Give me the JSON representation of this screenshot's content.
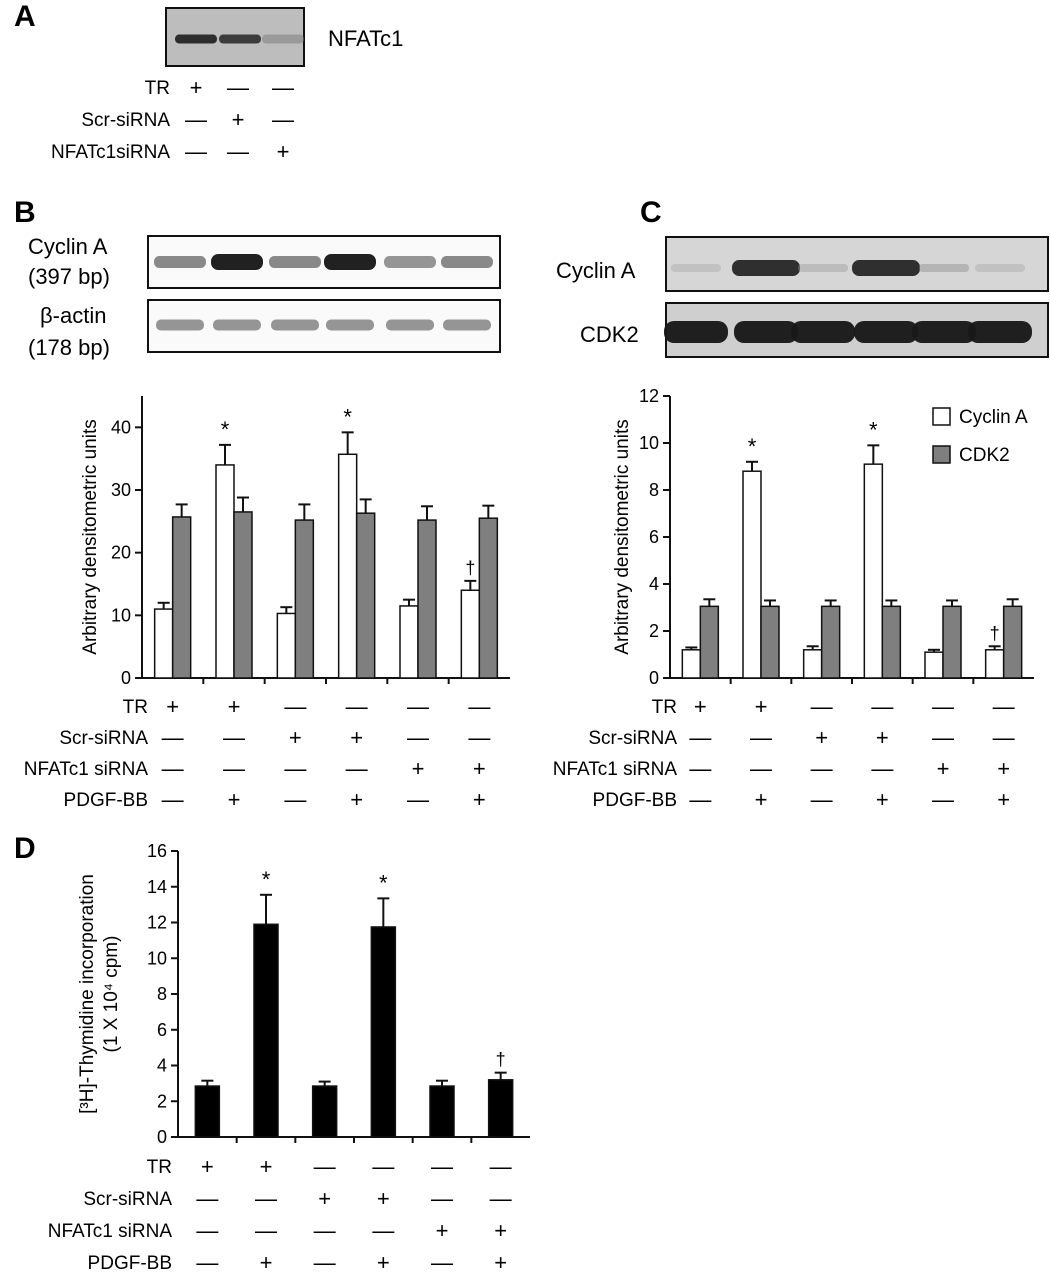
{
  "panel_A": {
    "letter": "A",
    "blot_label": "NFATc1",
    "conditions": [
      {
        "label": "TR",
        "signs": [
          "+",
          "—",
          "—"
        ]
      },
      {
        "label": "Scr-siRNA",
        "signs": [
          "—",
          "+",
          "—"
        ]
      },
      {
        "label": "NFATc1siRNA",
        "signs": [
          "—",
          "—",
          "+"
        ]
      }
    ],
    "band_intensity": [
      0.9,
      0.85,
      0.4
    ]
  },
  "panel_B": {
    "letter": "B",
    "gel_labels": [
      {
        "line1": "Cyclin A",
        "line2": "(397 bp)"
      },
      {
        "line1": "β-actin",
        "line2": "(178 bp)"
      }
    ],
    "band_intensity": {
      "cyclinA": [
        0.6,
        0.95,
        0.6,
        0.95,
        0.55,
        0.6
      ],
      "actin": [
        0.55,
        0.55,
        0.55,
        0.55,
        0.55,
        0.55
      ]
    }
  },
  "panel_C": {
    "letter": "C",
    "blot_labels": [
      "Cyclin A",
      "CDK2"
    ],
    "band_intensity": {
      "cyclinA": [
        0.2,
        0.9,
        0.25,
        0.9,
        0.3,
        0.2
      ],
      "cdk2": [
        0.95,
        0.95,
        0.95,
        0.95,
        0.95,
        0.95
      ]
    }
  },
  "conditions6": [
    {
      "label": "TR",
      "signs": [
        "+",
        "+",
        "—",
        "—",
        "—",
        "—"
      ]
    },
    {
      "label": "Scr-siRNA",
      "signs": [
        "—",
        "—",
        "+",
        "+",
        "—",
        "—"
      ]
    },
    {
      "label": "NFATc1 siRNA",
      "signs": [
        "—",
        "—",
        "—",
        "—",
        "+",
        "+"
      ]
    },
    {
      "label": "PDGF-BB",
      "signs": [
        "—",
        "+",
        "—",
        "+",
        "—",
        "+"
      ]
    }
  ],
  "panel_D_letter": "D",
  "chart_data": [
    {
      "id": "B",
      "type": "bar",
      "ylabel": "Arbitrary densitometric units",
      "ylim": [
        0,
        45
      ],
      "yticks": [
        0,
        10,
        20,
        30,
        40
      ],
      "series": [
        {
          "name": "Cyclin A",
          "color": "#ffffff",
          "values": [
            11,
            34,
            10.3,
            35.7,
            11.5,
            14
          ],
          "errors": [
            1,
            3.2,
            1,
            3.5,
            1,
            1.5
          ]
        },
        {
          "name": "CDK2",
          "color": "#7f7f7f",
          "values": [
            25.7,
            26.5,
            25.2,
            26.3,
            25.2,
            25.5
          ],
          "errors": [
            2,
            2.3,
            2.5,
            2.2,
            2.2,
            2
          ]
        }
      ],
      "annotations": [
        "",
        "*",
        "",
        "*",
        "",
        "†"
      ],
      "annotation_series": 0
    },
    {
      "id": "C",
      "type": "bar",
      "ylabel": "Arbitrary densitometric units",
      "ylim": [
        0,
        12
      ],
      "yticks": [
        0,
        2,
        4,
        6,
        8,
        10,
        12
      ],
      "legend": "top-right",
      "series": [
        {
          "name": "Cyclin A",
          "color": "#ffffff",
          "values": [
            1.2,
            8.8,
            1.2,
            9.1,
            1.1,
            1.2
          ],
          "errors": [
            0.1,
            0.4,
            0.15,
            0.8,
            0.1,
            0.15
          ]
        },
        {
          "name": "CDK2",
          "color": "#7f7f7f",
          "values": [
            3.05,
            3.05,
            3.05,
            3.05,
            3.05,
            3.05
          ],
          "errors": [
            0.3,
            0.25,
            0.25,
            0.25,
            0.25,
            0.3
          ]
        }
      ],
      "annotations": [
        "",
        "*",
        "",
        "*",
        "",
        "†"
      ],
      "annotation_series": 0
    },
    {
      "id": "D",
      "type": "bar",
      "ylabel_line1": "[³H]-Thymidine incorporation",
      "ylabel_line2": "(1 X 10⁴ cpm)",
      "ylim": [
        0,
        16
      ],
      "yticks": [
        0,
        2,
        4,
        6,
        8,
        10,
        12,
        14,
        16
      ],
      "series": [
        {
          "name": "",
          "color": "#000000",
          "values": [
            2.85,
            11.9,
            2.85,
            11.75,
            2.85,
            3.2
          ],
          "errors": [
            0.3,
            1.65,
            0.25,
            1.6,
            0.3,
            0.4
          ]
        }
      ],
      "annotations": [
        "",
        "*",
        "",
        "*",
        "",
        "†"
      ],
      "annotation_series": 0
    }
  ]
}
